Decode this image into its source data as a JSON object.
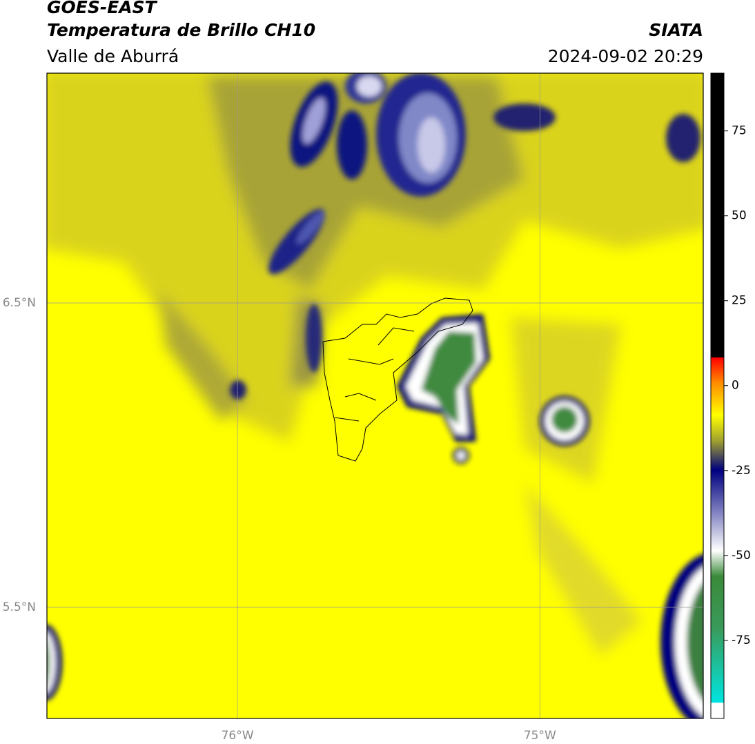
{
  "header": {
    "title": "GOES-EAST",
    "subtitle": "Temperatura de Brillo CH10",
    "region": "Valle de Aburrá",
    "source": "SIATA",
    "datetime": "2024-09-02 20:29"
  },
  "map": {
    "lon_range": [
      -76.63,
      -74.46
    ],
    "lat_range": [
      5.135,
      7.255
    ],
    "lon_ticks": [
      {
        "value": -76,
        "label": "76°W"
      },
      {
        "value": -75,
        "label": "75°W"
      }
    ],
    "lat_ticks": [
      {
        "value": 6.5,
        "label": "6.5°N"
      },
      {
        "value": 5.5,
        "label": "5.5°N"
      }
    ],
    "grid": true
  },
  "colorbar": {
    "range": [
      -98,
      92
    ],
    "ticks": [
      75,
      50,
      25,
      0,
      -25,
      -50,
      -75
    ]
  }
}
